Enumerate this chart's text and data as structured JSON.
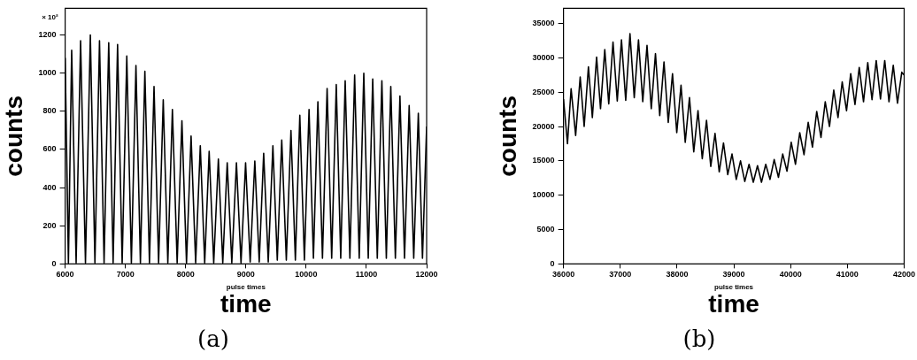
{
  "chart_data": [
    {
      "type": "line",
      "title": "(a)",
      "xlabel": "time",
      "ylabel": "counts",
      "annotations": [
        "× 10²",
        "pulse times"
      ],
      "xlim": [
        6000,
        12000
      ],
      "xticks": [
        6000,
        7000,
        8000,
        9000,
        10000,
        11000,
        12000
      ],
      "ylim": [
        0,
        1340
      ],
      "yticks": [
        0,
        200,
        400,
        600,
        800,
        1000,
        1200
      ],
      "grid": false,
      "legend": false,
      "marker": "none",
      "line_style": "solid",
      "series": [
        {
          "color": "#000000",
          "x": [
            6000,
            6054,
            6108,
            6182,
            6256,
            6337,
            6418,
            6494,
            6570,
            6646,
            6723,
            6796,
            6870,
            6946,
            7023,
            7099,
            7175,
            7249,
            7323,
            7399,
            7475,
            7551,
            7628,
            7704,
            7780,
            7859,
            7938,
            8014,
            8090,
            8166,
            8243,
            8316,
            8390,
            8466,
            8543,
            8616,
            8690,
            8766,
            8843,
            8919,
            8995,
            9071,
            9148,
            9221,
            9295,
            9371,
            9448,
            9521,
            9595,
            9671,
            9748,
            9821,
            9895,
            9971,
            10048,
            10121,
            10195,
            10271,
            10348,
            10424,
            10500,
            10574,
            10648,
            10726,
            10805,
            10881,
            10957,
            11031,
            11105,
            11181,
            11257,
            11331,
            11405,
            11481,
            11557,
            11633,
            11710,
            11786,
            11862,
            11931,
            12000
          ],
          "values": [
            1080,
            5,
            1120,
            5,
            1170,
            5,
            1200,
            5,
            1170,
            5,
            1160,
            5,
            1150,
            5,
            1090,
            5,
            1040,
            5,
            1010,
            5,
            930,
            5,
            860,
            5,
            810,
            5,
            750,
            5,
            670,
            5,
            620,
            5,
            590,
            5,
            550,
            5,
            530,
            5,
            530,
            5,
            530,
            10,
            540,
            10,
            580,
            10,
            620,
            20,
            650,
            20,
            700,
            20,
            780,
            20,
            810,
            30,
            850,
            30,
            920,
            30,
            940,
            30,
            960,
            30,
            990,
            30,
            1000,
            30,
            970,
            30,
            960,
            30,
            930,
            30,
            880,
            30,
            830,
            30,
            790,
            30,
            720
          ]
        }
      ]
    },
    {
      "type": "line",
      "title": "(b)",
      "xlabel": "time",
      "ylabel": "counts",
      "annotations": [
        "pulse times"
      ],
      "xlim": [
        36000,
        42000
      ],
      "xticks": [
        36000,
        37000,
        38000,
        39000,
        40000,
        41000,
        42000
      ],
      "ylim": [
        0,
        37200
      ],
      "yticks": [
        0,
        5000,
        10000,
        15000,
        20000,
        25000,
        30000,
        35000
      ],
      "grid": false,
      "legend": false,
      "marker": "none",
      "line_style": "solid",
      "series": [
        {
          "color": "#000000",
          "x": [
            36000,
            36070,
            36134,
            36214,
            36294,
            36364,
            36439,
            36508,
            36583,
            36652,
            36727,
            36797,
            36872,
            36947,
            37021,
            37096,
            37171,
            37246,
            37321,
            37396,
            37471,
            37546,
            37620,
            37695,
            37770,
            37845,
            37920,
            37995,
            38070,
            38144,
            38219,
            38294,
            38369,
            38444,
            38519,
            38594,
            38669,
            38743,
            38818,
            38893,
            38968,
            39043,
            39118,
            39193,
            39268,
            39343,
            39417,
            39487,
            39562,
            39637,
            39711,
            39786,
            39861,
            39936,
            40011,
            40086,
            40161,
            40236,
            40310,
            40385,
            40460,
            40535,
            40610,
            40685,
            40760,
            40835,
            40909,
            40985,
            41059,
            41134,
            41209,
            41284,
            41359,
            41434,
            41508,
            41583,
            41658,
            41733,
            41808,
            41883,
            41958,
            42000
          ],
          "values": [
            24000,
            17500,
            25500,
            18700,
            27200,
            20000,
            28700,
            21300,
            30100,
            22600,
            31200,
            23300,
            32300,
            23700,
            32600,
            23800,
            33500,
            24200,
            32600,
            23600,
            31800,
            22600,
            30600,
            21600,
            29400,
            20600,
            27700,
            19100,
            26000,
            17700,
            24200,
            16300,
            22300,
            15300,
            20900,
            14200,
            19000,
            13400,
            17600,
            13000,
            16000,
            12300,
            15000,
            12000,
            14500,
            11900,
            14300,
            11900,
            14500,
            12300,
            15200,
            12600,
            16000,
            13500,
            17700,
            14500,
            19100,
            15900,
            20600,
            17000,
            22200,
            18400,
            23600,
            20000,
            25300,
            21300,
            26500,
            22300,
            27700,
            23200,
            28600,
            23600,
            29300,
            23900,
            29600,
            24000,
            29600,
            23600,
            28900,
            23400,
            27900,
            27500
          ]
        }
      ]
    }
  ]
}
